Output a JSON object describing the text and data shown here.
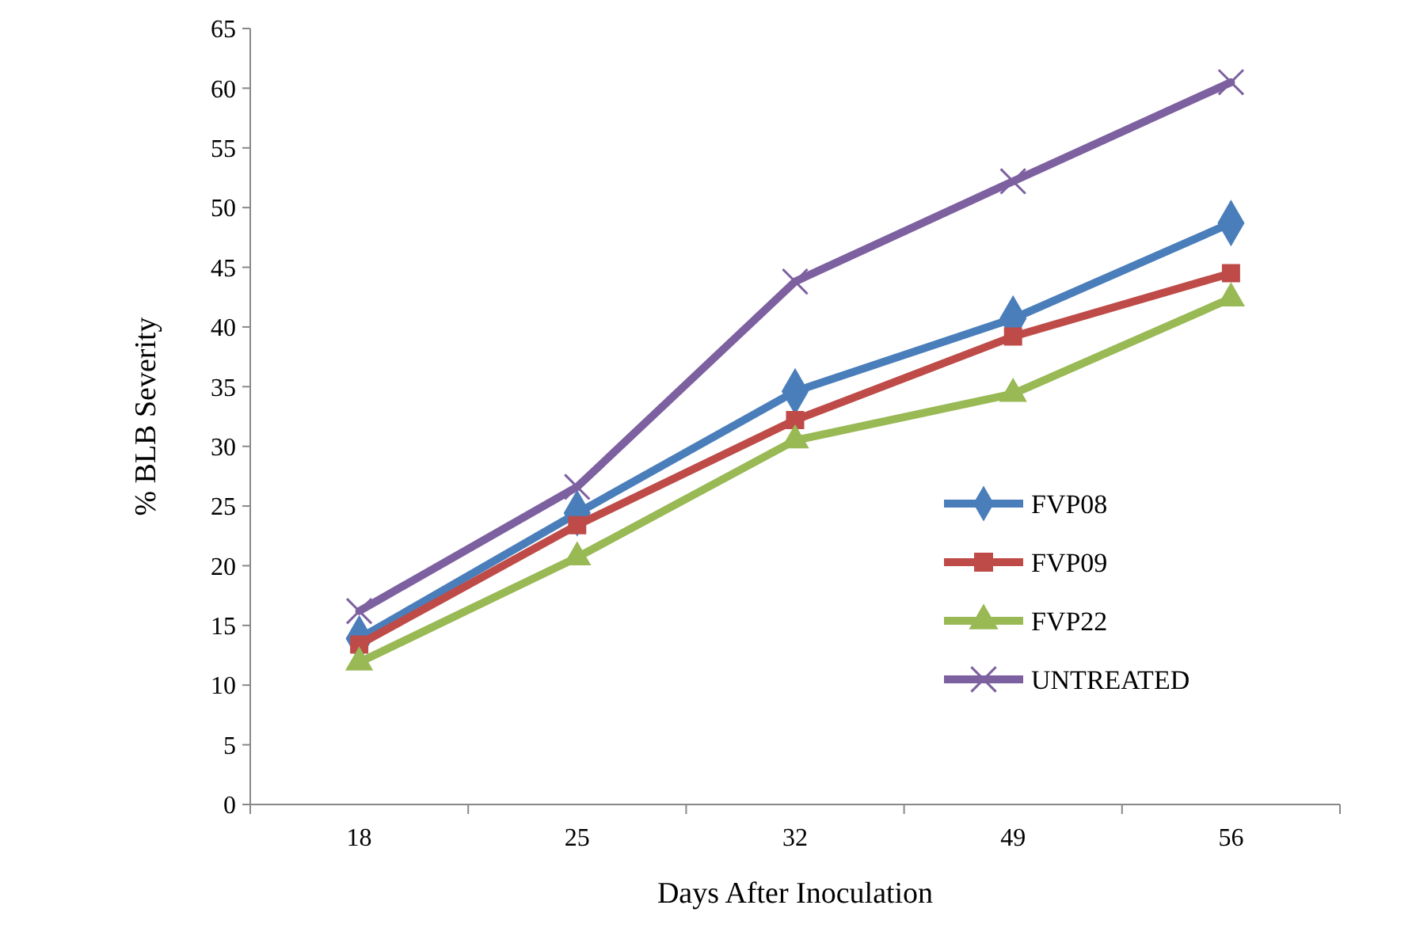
{
  "chart_data": {
    "type": "line",
    "xlabel": "Days After Inoculation",
    "ylabel": "% BLB Severity",
    "categories": [
      "18",
      "25",
      "32",
      "49",
      "56"
    ],
    "ylim": [
      0,
      65
    ],
    "yticks": [
      0,
      5,
      10,
      15,
      20,
      25,
      30,
      35,
      40,
      45,
      50,
      55,
      60,
      65
    ],
    "grid": false,
    "legend": "right",
    "line_style": "solid",
    "series": [
      {
        "name": "FVP08",
        "color": "#4a7ebb",
        "marker": "diamond",
        "values": [
          13.9,
          24.4,
          34.6,
          40.7,
          48.7
        ]
      },
      {
        "name": "FVP09",
        "color": "#be4b48",
        "marker": "square",
        "values": [
          13.4,
          23.4,
          32.2,
          39.2,
          44.5
        ]
      },
      {
        "name": "FVP22",
        "color": "#98b954",
        "marker": "triangle",
        "values": [
          11.9,
          20.7,
          30.5,
          34.4,
          42.4
        ]
      },
      {
        "name": "UNTREATED",
        "color": "#7d60a0",
        "marker": "cross",
        "values": [
          16.2,
          26.6,
          43.8,
          52.2,
          60.5
        ]
      }
    ]
  }
}
